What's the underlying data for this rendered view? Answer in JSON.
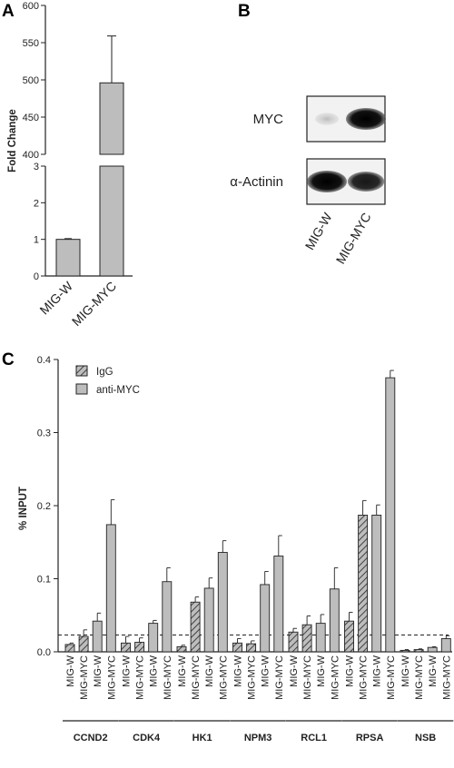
{
  "panels": {
    "a": "A",
    "b": "B",
    "c": "C"
  },
  "colors": {
    "bar_fill": "#bdbdbd",
    "axis": "#222222",
    "band": "#111111"
  },
  "chart_data": [
    {
      "id": "A",
      "type": "bar",
      "ylabel": "Fold Change",
      "categories": [
        "MIG-W",
        "MIG-MYC"
      ],
      "values": [
        1,
        496
      ],
      "errors": [
        0.02,
        63
      ],
      "broken_axis": true,
      "ylim_lower": [
        0,
        3
      ],
      "ylim_upper": [
        400,
        600
      ],
      "yticks_lower": [
        0,
        1,
        2,
        3
      ],
      "yticks_upper": [
        400,
        450,
        500,
        550,
        600
      ],
      "grid": false
    },
    {
      "id": "C",
      "type": "bar",
      "ylabel": "% INPUT",
      "ylim": [
        0,
        0.4
      ],
      "yticks": [
        0.0,
        0.1,
        0.2,
        0.3,
        0.4
      ],
      "threshold": 0.023,
      "legend_position": "top-left",
      "legend": [
        {
          "name": "IgG",
          "pattern": "hatched"
        },
        {
          "name": "anti-MYC",
          "pattern": "solid"
        }
      ],
      "grid": false,
      "groups": [
        {
          "gene": "CCND2",
          "bars": [
            {
              "label": "MIG-W",
              "series": "IgG",
              "value": 0.01,
              "error": 0.002
            },
            {
              "label": "MIG-MYC",
              "series": "IgG",
              "value": 0.021,
              "error": 0.009
            },
            {
              "label": "MIG-W",
              "series": "anti-MYC",
              "value": 0.042,
              "error": 0.011
            },
            {
              "label": "MIG-MYC",
              "series": "anti-MYC",
              "value": 0.174,
              "error": 0.034
            }
          ]
        },
        {
          "gene": "CDK4",
          "bars": [
            {
              "label": "MIG-W",
              "series": "IgG",
              "value": 0.012,
              "error": 0.009
            },
            {
              "label": "MIG-MYC",
              "series": "IgG",
              "value": 0.013,
              "error": 0.006
            },
            {
              "label": "MIG-W",
              "series": "anti-MYC",
              "value": 0.039,
              "error": 0.004
            },
            {
              "label": "MIG-MYC",
              "series": "anti-MYC",
              "value": 0.096,
              "error": 0.019
            }
          ]
        },
        {
          "gene": "HK1",
          "bars": [
            {
              "label": "MIG-W",
              "series": "IgG",
              "value": 0.007,
              "error": 0.002
            },
            {
              "label": "MIG-MYC",
              "series": "IgG",
              "value": 0.068,
              "error": 0.007
            },
            {
              "label": "MIG-W",
              "series": "anti-MYC",
              "value": 0.087,
              "error": 0.014
            },
            {
              "label": "MIG-MYC",
              "series": "anti-MYC",
              "value": 0.136,
              "error": 0.016
            }
          ]
        },
        {
          "gene": "NPM3",
          "bars": [
            {
              "label": "MIG-W",
              "series": "IgG",
              "value": 0.012,
              "error": 0.006
            },
            {
              "label": "MIG-MYC",
              "series": "IgG",
              "value": 0.011,
              "error": 0.004
            },
            {
              "label": "MIG-W",
              "series": "anti-MYC",
              "value": 0.092,
              "error": 0.018
            },
            {
              "label": "MIG-MYC",
              "series": "anti-MYC",
              "value": 0.131,
              "error": 0.028
            }
          ]
        },
        {
          "gene": "RCL1",
          "bars": [
            {
              "label": "MIG-W",
              "series": "IgG",
              "value": 0.027,
              "error": 0.005
            },
            {
              "label": "MIG-MYC",
              "series": "IgG",
              "value": 0.037,
              "error": 0.012
            },
            {
              "label": "MIG-W",
              "series": "anti-MYC",
              "value": 0.039,
              "error": 0.012
            },
            {
              "label": "MIG-MYC",
              "series": "anti-MYC",
              "value": 0.086,
              "error": 0.029
            }
          ]
        },
        {
          "gene": "RPSA",
          "bars": [
            {
              "label": "MIG-W",
              "series": "IgG",
              "value": 0.042,
              "error": 0.012
            },
            {
              "label": "MIG-MYC",
              "series": "IgG",
              "value": 0.187,
              "error": 0.02
            },
            {
              "label": "MIG-W",
              "series": "anti-MYC",
              "value": 0.187,
              "error": 0.014
            },
            {
              "label": "MIG-MYC",
              "series": "anti-MYC",
              "value": 0.375,
              "error": 0.01
            }
          ]
        },
        {
          "gene": "NSB",
          "bars": [
            {
              "label": "MIG-W",
              "series": "IgG",
              "value": 0.002,
              "error": 0.001
            },
            {
              "label": "MIG-MYC",
              "series": "IgG",
              "value": 0.003,
              "error": 0.001
            },
            {
              "label": "MIG-W",
              "series": "anti-MYC",
              "value": 0.006,
              "error": 0.001
            },
            {
              "label": "MIG-MYC",
              "series": "anti-MYC",
              "value": 0.018,
              "error": 0.004
            }
          ]
        }
      ]
    }
  ],
  "blot": {
    "rows": [
      {
        "label": "MYC",
        "band_intensity": [
          0.25,
          1.0
        ]
      },
      {
        "label": "α-Actinin",
        "band_intensity": [
          1.0,
          0.85
        ]
      }
    ],
    "lanes": [
      "MIG-W",
      "MIG-MYC"
    ]
  }
}
